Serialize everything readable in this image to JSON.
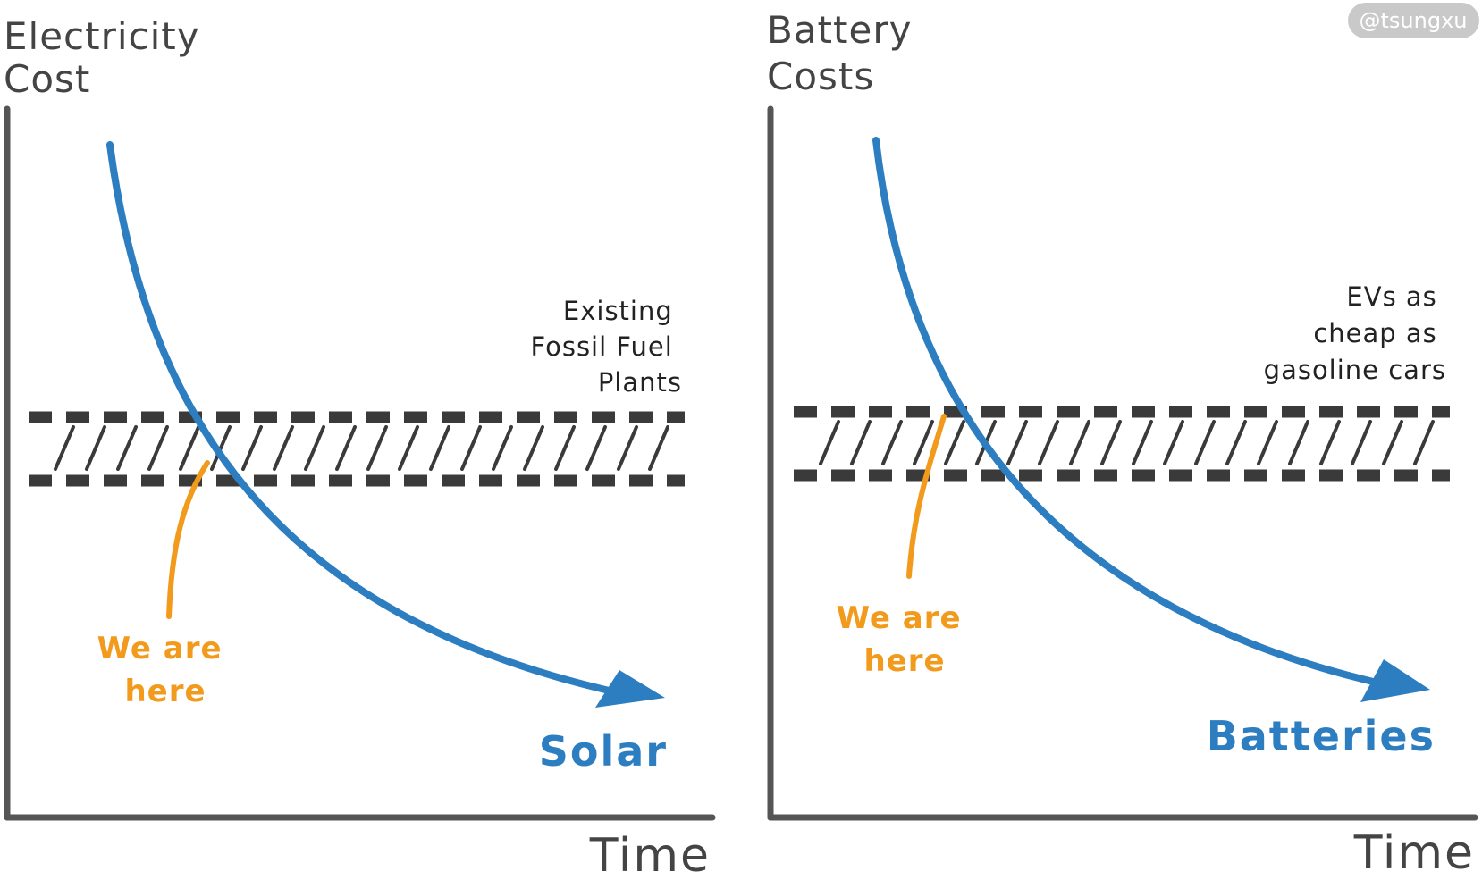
{
  "watermark": "@tsungxu",
  "colors": {
    "axis": "#555555",
    "curve": "#2c7ec1",
    "marker": "#f29a1b",
    "band": "#3a3a3a",
    "watermark_bg": "#c9c9c9"
  },
  "panels": [
    {
      "y_title": [
        "Electricity",
        "Cost"
      ],
      "x_title": "Time",
      "threshold_label": [
        "Existing",
        "Fossil Fuel",
        "Plants"
      ],
      "marker_label": [
        "We are",
        "here"
      ],
      "curve_label": "Solar"
    },
    {
      "y_title": [
        "Battery",
        "Costs"
      ],
      "x_title": "Time",
      "threshold_label": [
        "EVs as",
        "cheap as",
        "gasoline cars"
      ],
      "marker_label": [
        "We are",
        "here"
      ],
      "curve_label": "Batteries"
    }
  ]
}
